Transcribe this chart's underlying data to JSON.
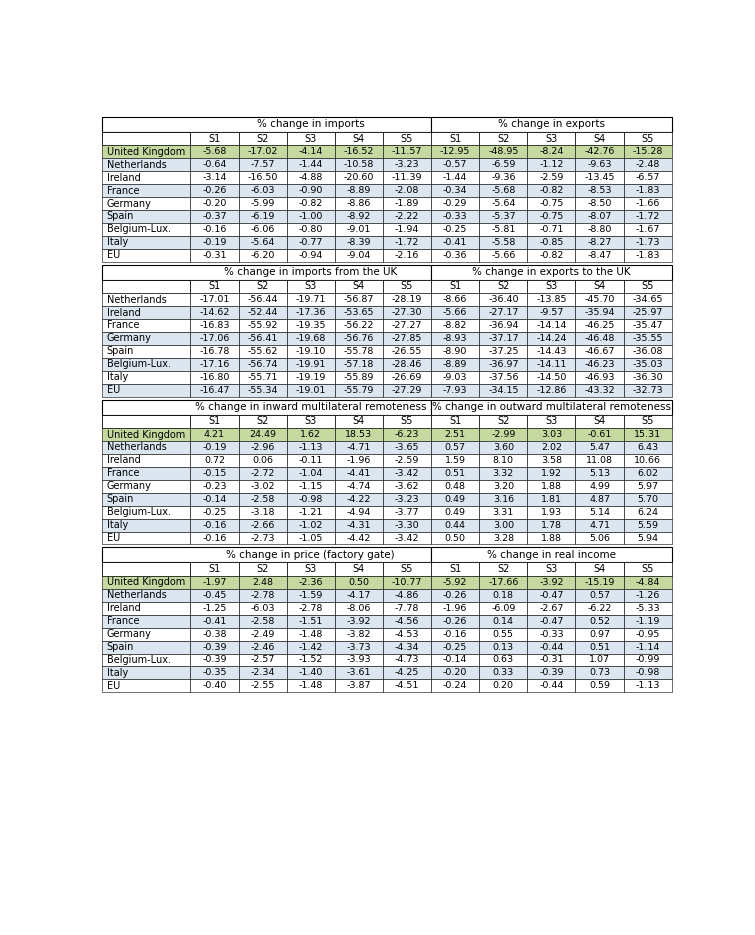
{
  "sections": [
    {
      "left_header": "% change in imports",
      "right_header": "% change in exports",
      "rows": [
        {
          "label": "United Kingdom",
          "left": [
            "-5.68",
            "-17.02",
            "-4.14",
            "-16.52",
            "-11.57"
          ],
          "right": [
            "-12.95",
            "-48.95",
            "-8.24",
            "-42.76",
            "-15.28"
          ],
          "uk": true
        },
        {
          "label": "Netherlands",
          "left": [
            "-0.64",
            "-7.57",
            "-1.44",
            "-10.58",
            "-3.23"
          ],
          "right": [
            "-0.57",
            "-6.59",
            "-1.12",
            "-9.63",
            "-2.48"
          ],
          "uk": false
        },
        {
          "label": "Ireland",
          "left": [
            "-3.14",
            "-16.50",
            "-4.88",
            "-20.60",
            "-11.39"
          ],
          "right": [
            "-1.44",
            "-9.36",
            "-2.59",
            "-13.45",
            "-6.57"
          ],
          "uk": false
        },
        {
          "label": "France",
          "left": [
            "-0.26",
            "-6.03",
            "-0.90",
            "-8.89",
            "-2.08"
          ],
          "right": [
            "-0.34",
            "-5.68",
            "-0.82",
            "-8.53",
            "-1.83"
          ],
          "uk": false
        },
        {
          "label": "Germany",
          "left": [
            "-0.20",
            "-5.99",
            "-0.82",
            "-8.86",
            "-1.89"
          ],
          "right": [
            "-0.29",
            "-5.64",
            "-0.75",
            "-8.50",
            "-1.66"
          ],
          "uk": false
        },
        {
          "label": "Spain",
          "left": [
            "-0.37",
            "-6.19",
            "-1.00",
            "-8.92",
            "-2.22"
          ],
          "right": [
            "-0.33",
            "-5.37",
            "-0.75",
            "-8.07",
            "-1.72"
          ],
          "uk": false
        },
        {
          "label": "Belgium-Lux.",
          "left": [
            "-0.16",
            "-6.06",
            "-0.80",
            "-9.01",
            "-1.94"
          ],
          "right": [
            "-0.25",
            "-5.81",
            "-0.71",
            "-8.80",
            "-1.67"
          ],
          "uk": false
        },
        {
          "label": "Italy",
          "left": [
            "-0.19",
            "-5.64",
            "-0.77",
            "-8.39",
            "-1.72"
          ],
          "right": [
            "-0.41",
            "-5.58",
            "-0.85",
            "-8.27",
            "-1.73"
          ],
          "uk": false
        },
        {
          "label": "EU",
          "left": [
            "-0.31",
            "-6.20",
            "-0.94",
            "-9.04",
            "-2.16"
          ],
          "right": [
            "-0.36",
            "-5.66",
            "-0.82",
            "-8.47",
            "-1.83"
          ],
          "uk": false
        }
      ]
    },
    {
      "left_header": "% change in imports from the UK",
      "right_header": "% change in exports to the UK",
      "rows": [
        {
          "label": "Netherlands",
          "left": [
            "-17.01",
            "-56.44",
            "-19.71",
            "-56.87",
            "-28.19"
          ],
          "right": [
            "-8.66",
            "-36.40",
            "-13.85",
            "-45.70",
            "-34.65"
          ],
          "uk": false
        },
        {
          "label": "Ireland",
          "left": [
            "-14.62",
            "-52.44",
            "-17.36",
            "-53.65",
            "-27.30"
          ],
          "right": [
            "-5.66",
            "-27.17",
            "-9.57",
            "-35.94",
            "-25.97"
          ],
          "uk": false
        },
        {
          "label": "France",
          "left": [
            "-16.83",
            "-55.92",
            "-19.35",
            "-56.22",
            "-27.27"
          ],
          "right": [
            "-8.82",
            "-36.94",
            "-14.14",
            "-46.25",
            "-35.47"
          ],
          "uk": false
        },
        {
          "label": "Germany",
          "left": [
            "-17.06",
            "-56.41",
            "-19.68",
            "-56.76",
            "-27.85"
          ],
          "right": [
            "-8.93",
            "-37.17",
            "-14.24",
            "-46.48",
            "-35.55"
          ],
          "uk": false
        },
        {
          "label": "Spain",
          "left": [
            "-16.78",
            "-55.62",
            "-19.10",
            "-55.78",
            "-26.55"
          ],
          "right": [
            "-8.90",
            "-37.25",
            "-14.43",
            "-46.67",
            "-36.08"
          ],
          "uk": false
        },
        {
          "label": "Belgium-Lux.",
          "left": [
            "-17.16",
            "-56.74",
            "-19.91",
            "-57.18",
            "-28.46"
          ],
          "right": [
            "-8.89",
            "-36.97",
            "-14.11",
            "-46.23",
            "-35.03"
          ],
          "uk": false
        },
        {
          "label": "Italy",
          "left": [
            "-16.80",
            "-55.71",
            "-19.19",
            "-55.89",
            "-26.69"
          ],
          "right": [
            "-9.03",
            "-37.56",
            "-14.50",
            "-46.93",
            "-36.30"
          ],
          "uk": false
        },
        {
          "label": "EU",
          "left": [
            "-16.47",
            "-55.34",
            "-19.01",
            "-55.79",
            "-27.29"
          ],
          "right": [
            "-7.93",
            "-34.15",
            "-12.86",
            "-43.32",
            "-32.73"
          ],
          "uk": false
        }
      ]
    },
    {
      "left_header": "% change in inward multilateral remoteness",
      "right_header": "% change in outward multilateral remoteness",
      "rows": [
        {
          "label": "United Kingdom",
          "left": [
            "4.21",
            "24.49",
            "1.62",
            "18.53",
            "-6.23"
          ],
          "right": [
            "2.51",
            "-2.99",
            "3.03",
            "-0.61",
            "15.31"
          ],
          "uk": true
        },
        {
          "label": "Netherlands",
          "left": [
            "-0.19",
            "-2.96",
            "-1.13",
            "-4.71",
            "-3.65"
          ],
          "right": [
            "0.57",
            "3.60",
            "2.02",
            "5.47",
            "6.43"
          ],
          "uk": false
        },
        {
          "label": "Ireland",
          "left": [
            "0.72",
            "0.06",
            "-0.11",
            "-1.96",
            "-2.59"
          ],
          "right": [
            "1.59",
            "8.10",
            "3.58",
            "11.08",
            "10.66"
          ],
          "uk": false
        },
        {
          "label": "France",
          "left": [
            "-0.15",
            "-2.72",
            "-1.04",
            "-4.41",
            "-3.42"
          ],
          "right": [
            "0.51",
            "3.32",
            "1.92",
            "5.13",
            "6.02"
          ],
          "uk": false
        },
        {
          "label": "Germany",
          "left": [
            "-0.23",
            "-3.02",
            "-1.15",
            "-4.74",
            "-3.62"
          ],
          "right": [
            "0.48",
            "3.20",
            "1.88",
            "4.99",
            "5.97"
          ],
          "uk": false
        },
        {
          "label": "Spain",
          "left": [
            "-0.14",
            "-2.58",
            "-0.98",
            "-4.22",
            "-3.23"
          ],
          "right": [
            "0.49",
            "3.16",
            "1.81",
            "4.87",
            "5.70"
          ],
          "uk": false
        },
        {
          "label": "Belgium-Lux.",
          "left": [
            "-0.25",
            "-3.18",
            "-1.21",
            "-4.94",
            "-3.77"
          ],
          "right": [
            "0.49",
            "3.31",
            "1.93",
            "5.14",
            "6.24"
          ],
          "uk": false
        },
        {
          "label": "Italy",
          "left": [
            "-0.16",
            "-2.66",
            "-1.02",
            "-4.31",
            "-3.30"
          ],
          "right": [
            "0.44",
            "3.00",
            "1.78",
            "4.71",
            "5.59"
          ],
          "uk": false
        },
        {
          "label": "EU",
          "left": [
            "-0.16",
            "-2.73",
            "-1.05",
            "-4.42",
            "-3.42"
          ],
          "right": [
            "0.50",
            "3.28",
            "1.88",
            "5.06",
            "5.94"
          ],
          "uk": false
        }
      ]
    },
    {
      "left_header": "% change in price (factory gate)",
      "right_header": "% change in real income",
      "rows": [
        {
          "label": "United Kingdom",
          "left": [
            "-1.97",
            "2.48",
            "-2.36",
            "0.50",
            "-10.77"
          ],
          "right": [
            "-5.92",
            "-17.66",
            "-3.92",
            "-15.19",
            "-4.84"
          ],
          "uk": true
        },
        {
          "label": "Netherlands",
          "left": [
            "-0.45",
            "-2.78",
            "-1.59",
            "-4.17",
            "-4.86"
          ],
          "right": [
            "-0.26",
            "0.18",
            "-0.47",
            "0.57",
            "-1.26"
          ],
          "uk": false
        },
        {
          "label": "Ireland",
          "left": [
            "-1.25",
            "-6.03",
            "-2.78",
            "-8.06",
            "-7.78"
          ],
          "right": [
            "-1.96",
            "-6.09",
            "-2.67",
            "-6.22",
            "-5.33"
          ],
          "uk": false
        },
        {
          "label": "France",
          "left": [
            "-0.41",
            "-2.58",
            "-1.51",
            "-3.92",
            "-4.56"
          ],
          "right": [
            "-0.26",
            "0.14",
            "-0.47",
            "0.52",
            "-1.19"
          ],
          "uk": false
        },
        {
          "label": "Germany",
          "left": [
            "-0.38",
            "-2.49",
            "-1.48",
            "-3.82",
            "-4.53"
          ],
          "right": [
            "-0.16",
            "0.55",
            "-0.33",
            "0.97",
            "-0.95"
          ],
          "uk": false
        },
        {
          "label": "Spain",
          "left": [
            "-0.39",
            "-2.46",
            "-1.42",
            "-3.73",
            "-4.34"
          ],
          "right": [
            "-0.25",
            "0.13",
            "-0.44",
            "0.51",
            "-1.14"
          ],
          "uk": false
        },
        {
          "label": "Belgium-Lux.",
          "left": [
            "-0.39",
            "-2.57",
            "-1.52",
            "-3.93",
            "-4.73"
          ],
          "right": [
            "-0.14",
            "0.63",
            "-0.31",
            "1.07",
            "-0.99"
          ],
          "uk": false
        },
        {
          "label": "Italy",
          "left": [
            "-0.35",
            "-2.34",
            "-1.40",
            "-3.61",
            "-4.25"
          ],
          "right": [
            "-0.20",
            "0.33",
            "-0.39",
            "0.73",
            "-0.98"
          ],
          "uk": false
        },
        {
          "label": "EU",
          "left": [
            "-0.40",
            "-2.55",
            "-1.48",
            "-3.87",
            "-4.51"
          ],
          "right": [
            "-0.24",
            "0.20",
            "-0.44",
            "0.59",
            "-1.13"
          ],
          "uk": false
        }
      ]
    }
  ],
  "col_headers": [
    "S1",
    "S2",
    "S3",
    "S4",
    "S5"
  ],
  "color_uk_row": "#c6d9a0",
  "color_blue_dark": "#c5d9f1",
  "color_blue_light": "#dce6f1",
  "color_white": "#ffffff",
  "color_border_outer": "#000000",
  "color_border_inner": "#aaaaaa"
}
